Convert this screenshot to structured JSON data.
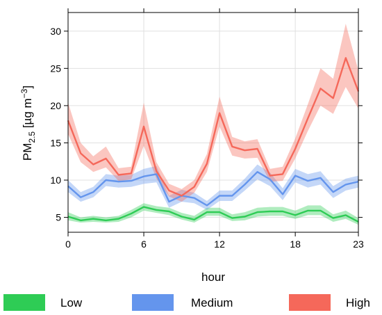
{
  "chart_data": {
    "type": "line",
    "xlabel": "hour",
    "ylabel_main": "PM",
    "ylabel_sub": "2.5",
    "ylabel_units_pre": " [µg m",
    "ylabel_units_sup": "−3",
    "ylabel_units_post": "]",
    "xlim": [
      0,
      23
    ],
    "ylim": [
      3,
      32.5
    ],
    "x_ticks": [
      0,
      6,
      12,
      18,
      23
    ],
    "y_ticks": [
      5,
      10,
      15,
      20,
      25,
      30
    ],
    "grid": true,
    "legend_position": "bottom",
    "x": [
      0,
      1,
      2,
      3,
      4,
      5,
      6,
      7,
      8,
      9,
      10,
      11,
      12,
      13,
      14,
      15,
      16,
      17,
      18,
      19,
      20,
      21,
      22,
      23
    ],
    "series": [
      {
        "name": "Low",
        "color": "#2ecc55",
        "values": [
          5.1,
          4.6,
          4.8,
          4.6,
          4.8,
          5.5,
          6.4,
          6.0,
          5.8,
          5.1,
          4.7,
          5.7,
          5.7,
          4.9,
          5.1,
          5.7,
          5.8,
          5.8,
          5.3,
          5.9,
          5.9,
          4.9,
          5.3,
          4.4
        ],
        "lower": [
          4.6,
          4.3,
          4.4,
          4.3,
          4.4,
          5.0,
          5.9,
          5.6,
          5.3,
          4.7,
          4.3,
          5.2,
          5.2,
          4.5,
          4.6,
          5.1,
          5.2,
          5.2,
          4.8,
          5.3,
          5.3,
          4.4,
          4.8,
          4.0
        ],
        "upper": [
          5.7,
          5.0,
          5.2,
          5.0,
          5.2,
          6.0,
          6.9,
          6.5,
          6.3,
          5.6,
          5.2,
          6.3,
          6.3,
          5.4,
          5.7,
          6.3,
          6.4,
          6.4,
          5.9,
          6.6,
          6.6,
          5.4,
          5.9,
          4.9
        ]
      },
      {
        "name": "Medium",
        "color": "#6495ed",
        "values": [
          9.2,
          7.7,
          8.4,
          10.0,
          9.8,
          9.9,
          10.5,
          10.8,
          7.1,
          7.9,
          7.6,
          6.6,
          7.9,
          7.9,
          9.4,
          11.1,
          10.1,
          8.1,
          10.6,
          9.9,
          10.3,
          8.4,
          9.4,
          9.8
        ],
        "lower": [
          8.4,
          7.1,
          7.7,
          9.2,
          9.0,
          9.1,
          9.5,
          9.7,
          6.3,
          7.1,
          6.9,
          6.0,
          7.2,
          7.2,
          8.6,
          10.1,
          9.2,
          7.3,
          9.7,
          9.0,
          9.4,
          7.6,
          8.6,
          9.0
        ],
        "upper": [
          10.0,
          8.4,
          9.1,
          10.8,
          10.6,
          10.7,
          11.5,
          11.9,
          7.9,
          8.7,
          8.3,
          7.2,
          8.6,
          8.6,
          10.2,
          12.1,
          11.0,
          8.9,
          11.5,
          10.8,
          11.2,
          9.2,
          10.2,
          10.6
        ]
      },
      {
        "name": "High",
        "color": "#f5685a",
        "values": [
          18.0,
          13.6,
          12.1,
          12.9,
          10.7,
          10.9,
          17.2,
          11.2,
          8.6,
          7.9,
          9.1,
          12.2,
          19.0,
          14.5,
          14.0,
          14.2,
          10.6,
          10.8,
          14.2,
          18.3,
          22.3,
          21.0,
          26.4,
          21.9
        ],
        "lower": [
          16.2,
          12.4,
          11.1,
          11.7,
          9.9,
          10.1,
          14.6,
          10.2,
          7.8,
          7.1,
          8.3,
          11.1,
          17.2,
          13.3,
          12.9,
          13.0,
          9.8,
          9.9,
          12.9,
          16.6,
          20.0,
          18.9,
          22.5,
          19.6
        ],
        "upper": [
          20.4,
          15.0,
          13.2,
          14.5,
          11.6,
          11.8,
          20.4,
          12.4,
          9.5,
          8.8,
          10.0,
          13.5,
          21.2,
          15.8,
          15.2,
          15.5,
          11.5,
          11.8,
          15.6,
          20.2,
          25.0,
          23.6,
          31.0,
          24.7
        ]
      }
    ]
  }
}
